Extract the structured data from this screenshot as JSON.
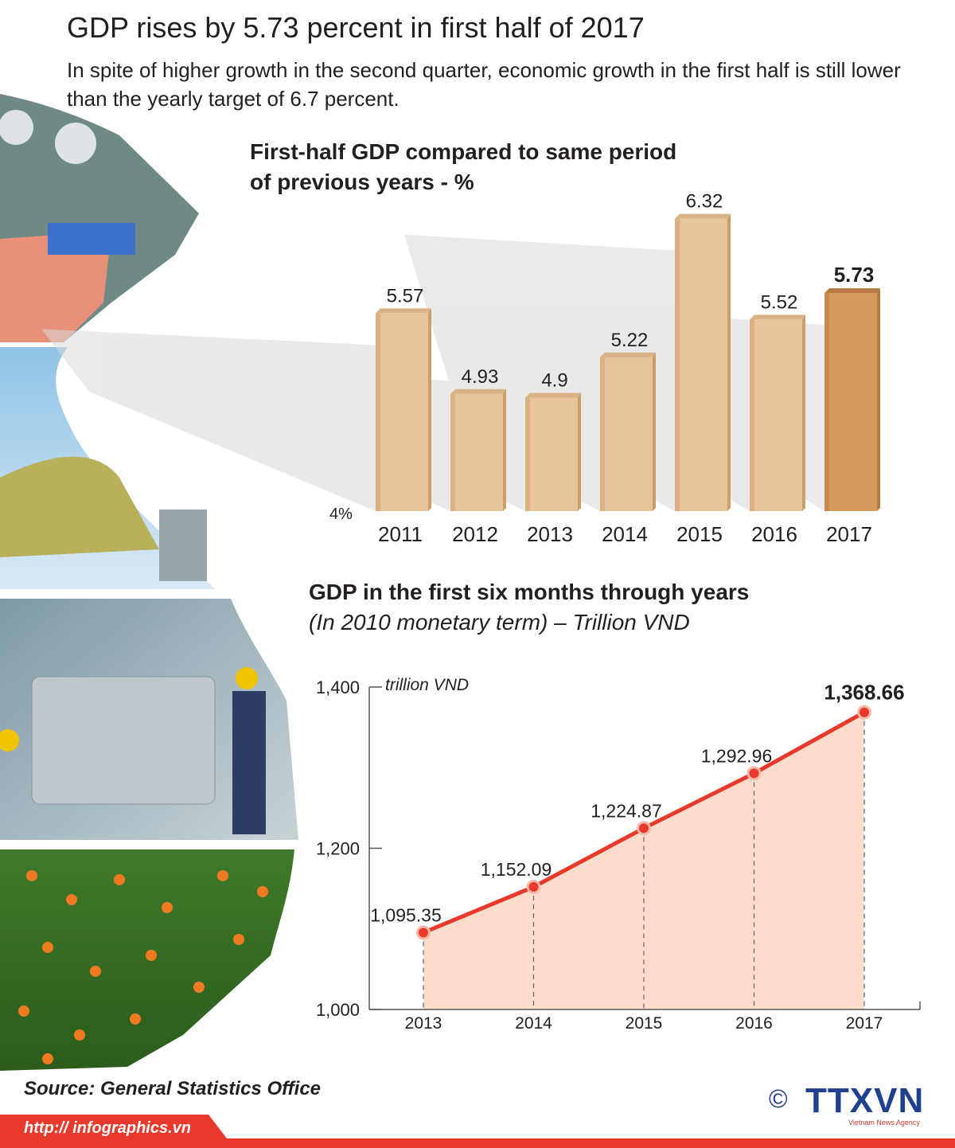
{
  "header": {
    "title": "GDP rises by 5.73 percent in first half of 2017",
    "subtitle": "In spite of higher growth in the second quarter, economic growth in the first half is still lower than the yearly target of 6.7 percent."
  },
  "chart_data": [
    {
      "type": "bar",
      "title": "First-half GDP compared to same period of previous years - %",
      "categories": [
        "2011",
        "2012",
        "2013",
        "2014",
        "2015",
        "2016",
        "2017"
      ],
      "values": [
        5.57,
        4.93,
        4.9,
        5.22,
        6.32,
        5.52,
        5.73
      ],
      "value_labels": [
        "5.57",
        "4.93",
        "4.9",
        "5.22",
        "6.32",
        "5.52",
        "5.73"
      ],
      "baseline_label": "4%",
      "ylim": [
        4,
        6.4
      ],
      "highlight_index": 6,
      "colors": {
        "bar": "#e8c49a",
        "bar_side": "#c99d6c",
        "bar_top": "#d9b285",
        "highlight": "#d9995c",
        "highlight_side": "#b87a42"
      }
    },
    {
      "type": "area",
      "title": "GDP in the first six months through years",
      "subtitle": "(In 2010 monetary term) – Trillion VND",
      "ylabel": "trillion VND",
      "x": [
        "2013",
        "2014",
        "2015",
        "2016",
        "2017"
      ],
      "values": [
        1095.35,
        1152.09,
        1224.87,
        1292.96,
        1368.66
      ],
      "value_labels": [
        "1,095.35",
        "1,152.09",
        "1,224.87",
        "1,292.96",
        "1,368.66"
      ],
      "yticks": [
        1000,
        1200,
        1400
      ],
      "ytick_labels": [
        "1,000",
        "1,200",
        "1,400"
      ],
      "ylim": [
        1000,
        1400
      ],
      "highlight_index": 4,
      "colors": {
        "line": "#e8392b",
        "fill": "#fcdccb",
        "marker": "#e8392b"
      }
    }
  ],
  "footer": {
    "source": "Source: General Statistics Office",
    "url": "http:// infographics.vn",
    "copyright": "©",
    "brand": "TTXVN",
    "brand_tag": "Vietnam News Agency"
  }
}
